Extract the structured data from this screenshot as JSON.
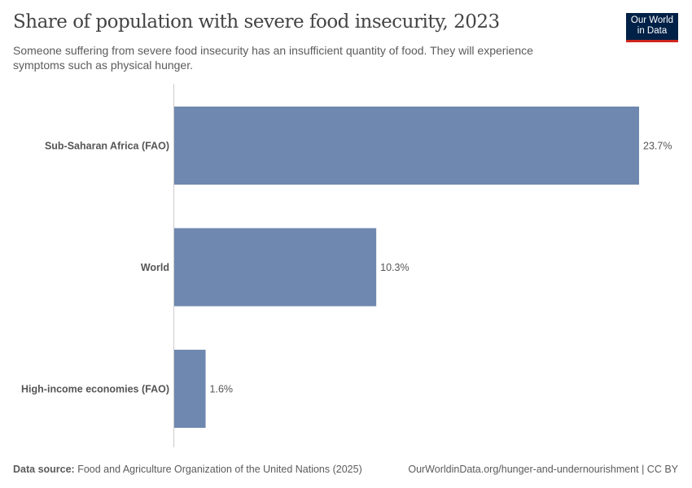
{
  "header": {
    "title": "Share of population with severe food insecurity, 2023",
    "subtitle": "Someone suffering from severe food insecurity has an insufficient quantity of food. They will experience symptoms such as physical hunger.",
    "logo_text": "Our World in Data"
  },
  "chart_data": {
    "type": "bar",
    "orientation": "horizontal",
    "categories": [
      "Sub-Saharan Africa (FAO)",
      "World",
      "High-income economies (FAO)"
    ],
    "values": [
      23.7,
      10.3,
      1.6
    ],
    "data_labels": [
      "23.7%",
      "10.3%",
      "1.6%"
    ],
    "unit": "%",
    "xlim": [
      0,
      23.7
    ],
    "grid": false,
    "bar_color": "#6f88b0"
  },
  "footer": {
    "source_label": "Data source:",
    "source_text": "Food and Agriculture Organization of the United Nations (2025)",
    "url_text": "OurWorldinData.org/hunger-and-undernourishment | CC BY"
  }
}
